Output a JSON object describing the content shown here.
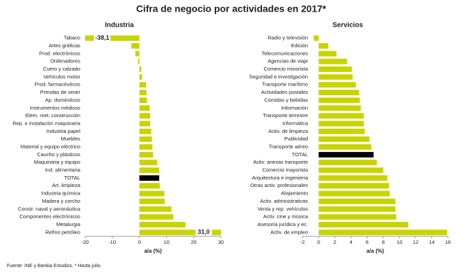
{
  "title": "Cifra de negocio por actividades en 2017*",
  "source": "Fuente: INE y Bankia Estudios. * Hasta julio.",
  "chart_data": [
    {
      "type": "barh",
      "title": "Industria",
      "xlabel": "a/a (%)",
      "categories": [
        "Tabaco",
        "Artes gráficas",
        "Prod. electrónicos",
        "Ordenadores",
        "Cuero y calzado",
        "Vehículos motor",
        "Prod. farmacéuticos",
        "Prendas de vestir",
        "Ap. domésticos",
        "Instrumentos médicos",
        "Elem. met. construcción",
        "Rep. e instalación maquinaria",
        "Industria papel",
        "Muebles",
        "Material y equipo eléctrico",
        "Caucho y plásticos",
        "Maquinaria y equipo",
        "Ind. alimentaria",
        "TOTAL",
        "Art. limpieza",
        "Industria química",
        "Madera y corcho",
        "Constr. naval y aeronáutica",
        "Componentes electrónicos",
        "Metalurgia",
        "Refino petróleo"
      ],
      "values": [
        -38.1,
        -3,
        -1.5,
        -0.5,
        0.7,
        1.0,
        2.5,
        2.6,
        2.8,
        3.8,
        4.0,
        4.0,
        4.3,
        4.6,
        4.8,
        5.0,
        6.5,
        7.3,
        7.3,
        7.5,
        9.2,
        9.3,
        11.8,
        12.5,
        17.0,
        31.0
      ],
      "value_labels": [
        "-38,1",
        null,
        null,
        null,
        null,
        null,
        null,
        null,
        null,
        null,
        null,
        null,
        null,
        null,
        null,
        null,
        null,
        null,
        null,
        null,
        null,
        null,
        null,
        null,
        null,
        "31,0"
      ],
      "colors": [
        "#c8d400",
        "#c8d400",
        "#c8d400",
        "#c8d400",
        "#c8d400",
        "#c8d400",
        "#c8d400",
        "#c8d400",
        "#c8d400",
        "#c8d400",
        "#c8d400",
        "#c8d400",
        "#c8d400",
        "#c8d400",
        "#c8d400",
        "#c8d400",
        "#c8d400",
        "#c8d400",
        "#000000",
        "#c8d400",
        "#c8d400",
        "#c8d400",
        "#c8d400",
        "#c8d400",
        "#c8d400",
        "#c8d400"
      ],
      "value_label_color": "#c8102e",
      "xlim": [
        -20,
        30
      ],
      "xticks": [
        -20,
        -10,
        0,
        10,
        20,
        30
      ]
    },
    {
      "type": "barh",
      "title": "Servicios",
      "xlabel": "a/a (%)",
      "categories": [
        "Radio y televisión",
        "Edición",
        "Telecomunicaciones",
        "Agencias de viaje",
        "Comercio minorista",
        "Seguridad e investigación",
        "Transporte marítimo",
        "Actividades postales",
        "Comidas y bebidas",
        "Información",
        "Transporte terrestre",
        "Informática",
        "Activ. de limpieza",
        "Publicidad",
        "Transporte aéreo",
        "TOTAL",
        "Activ. anexas transporte",
        "Comercio mayorista",
        "Arquitectura e ingeniería",
        "Otras activ. profesionales",
        "Alojamiento",
        "Activ. administrativas",
        "Venta y rep. vehículos",
        "Activ. cine y música",
        "Asesoría jurídica y ec.",
        "Activ. de empleo"
      ],
      "values": [
        -0.6,
        1.2,
        2.2,
        3.5,
        4.1,
        4.2,
        4.6,
        5.0,
        5.1,
        5.2,
        5.6,
        5.6,
        5.7,
        6.3,
        6.5,
        6.8,
        7.2,
        8.0,
        8.5,
        8.7,
        8.8,
        9.5,
        9.5,
        9.6,
        11.1,
        15.9
      ],
      "colors": [
        "#c8d400",
        "#c8d400",
        "#c8d400",
        "#c8d400",
        "#c8d400",
        "#c8d400",
        "#c8d400",
        "#c8d400",
        "#c8d400",
        "#c8d400",
        "#c8d400",
        "#c8d400",
        "#c8d400",
        "#c8d400",
        "#c8d400",
        "#000000",
        "#c8d400",
        "#c8d400",
        "#c8d400",
        "#c8d400",
        "#c8d400",
        "#c8d400",
        "#c8d400",
        "#c8d400",
        "#c8d400",
        "#c8d400"
      ],
      "xlim": [
        -2,
        16
      ],
      "xticks": [
        -2,
        0,
        2,
        4,
        6,
        8,
        10,
        12,
        14,
        16
      ]
    }
  ]
}
